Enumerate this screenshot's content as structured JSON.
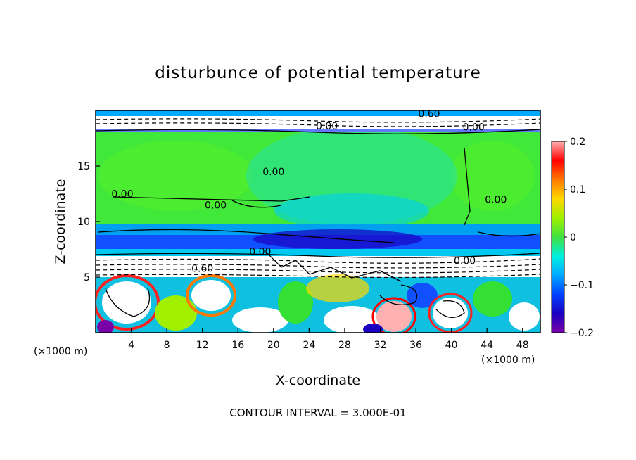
{
  "chart_data": {
    "type": "heatmap",
    "title": "disturbunce of potential temperature",
    "xlabel": "X-coordinate",
    "ylabel": "Z-coordinate",
    "x_unit_label_left": "(×1000 m)",
    "x_unit_label_right": "(×1000 m)",
    "xlim": [
      0,
      50
    ],
    "ylim": [
      0,
      20
    ],
    "x_ticks": [
      4,
      8,
      12,
      16,
      20,
      24,
      28,
      32,
      36,
      40,
      44,
      48
    ],
    "y_ticks": [
      5,
      10,
      15
    ],
    "colorbar": {
      "range": [
        -0.2,
        0.2
      ],
      "ticks": [
        {
          "value": 0.2,
          "label": "0.2"
        },
        {
          "value": 0.1,
          "label": "0.1"
        },
        {
          "value": 0.0,
          "label": "0"
        },
        {
          "value": -0.1,
          "label": "−0.1"
        },
        {
          "value": -0.2,
          "label": "−0.2"
        }
      ]
    },
    "contour_labels": [
      {
        "text": "0.00",
        "x": 3.0,
        "z": 12.5
      },
      {
        "text": "0.00",
        "x": 13.5,
        "z": 11.5
      },
      {
        "text": "0.00",
        "x": 18.5,
        "z": 7.3
      },
      {
        "text": "0.00",
        "x": 45.0,
        "z": 12.0
      },
      {
        "text": "0.00",
        "x": 42.5,
        "z": 18.5
      },
      {
        "text": "0.00",
        "x": 20.0,
        "z": 14.5
      },
      {
        "text": "0.60",
        "x": 37.5,
        "z": 19.7
      },
      {
        "text": "0.60",
        "x": 12.0,
        "z": 5.8
      },
      {
        "text": "0.00",
        "x": 41.5,
        "z": 6.5
      },
      {
        "text": "0.00",
        "x": 26.0,
        "z": 18.6
      }
    ],
    "footer": "CONTOUR INTERVAL = 3.000E-01"
  }
}
